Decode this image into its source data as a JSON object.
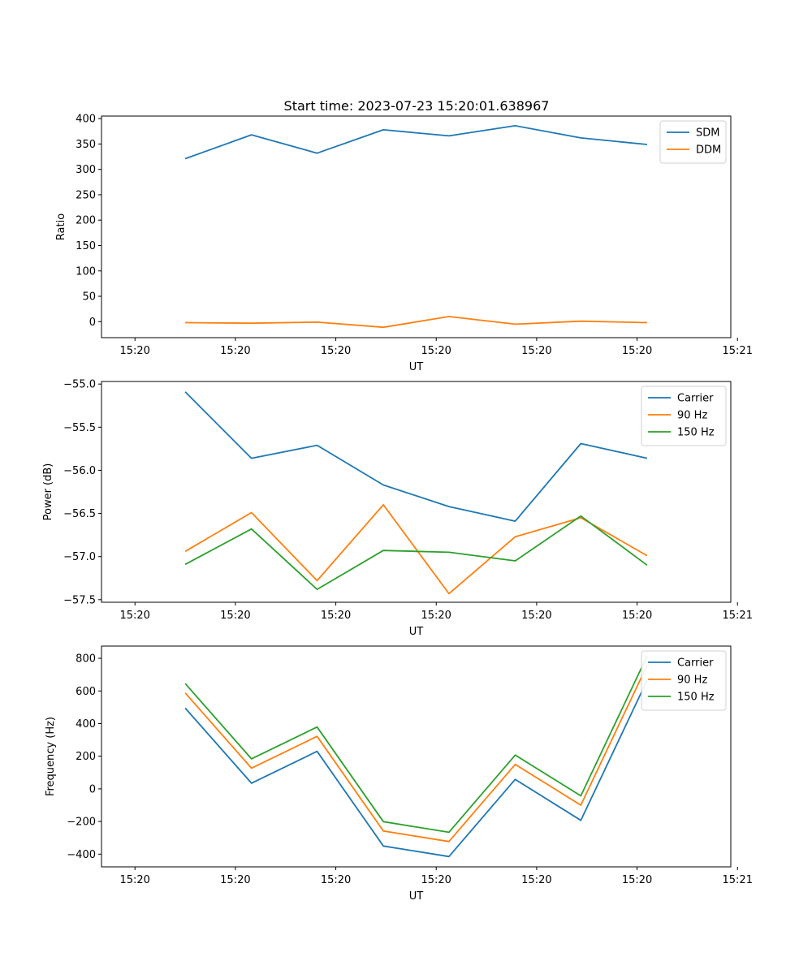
{
  "figure": {
    "title": "Start time: 2023-07-23 15:20:01.638967"
  },
  "chart_data": [
    {
      "type": "line",
      "key": "ratio",
      "title": "Start time: 2023-07-23 15:20:01.638967",
      "xlabel": "UT",
      "ylabel": "Ratio",
      "xlim": [
        -0.5,
        8.9
      ],
      "ylim": [
        -31.5,
        405
      ],
      "x_ticks": [
        0,
        1.5,
        3,
        4.5,
        6,
        7.5,
        9
      ],
      "x_tick_labels": [
        "15:20",
        "15:20",
        "15:20",
        "15:20",
        "15:20",
        "15:20",
        "15:21"
      ],
      "y_ticks": [
        0,
        50,
        100,
        150,
        200,
        250,
        300,
        350,
        400
      ],
      "y_tick_labels": [
        "0",
        "50",
        "100",
        "150",
        "200",
        "250",
        "300",
        "350",
        "400"
      ],
      "legend_position": "top-right",
      "x": [
        0.75,
        1.74,
        2.72,
        3.71,
        4.69,
        5.68,
        6.66,
        7.65
      ],
      "series": [
        {
          "name": "SDM",
          "color": "#1f77b4",
          "values": [
            321,
            368,
            332,
            378,
            366,
            386,
            362,
            349
          ]
        },
        {
          "name": "DDM",
          "color": "#ff7f0e",
          "values": [
            -2,
            -3,
            -1,
            -11,
            10,
            -5,
            1,
            -2
          ]
        }
      ]
    },
    {
      "type": "line",
      "key": "power",
      "title": "",
      "xlabel": "UT",
      "ylabel": "Power (dB)",
      "xlim": [
        -0.5,
        8.9
      ],
      "ylim": [
        -57.53,
        -54.97
      ],
      "x_ticks": [
        0,
        1.5,
        3,
        4.5,
        6,
        7.5,
        9
      ],
      "x_tick_labels": [
        "15:20",
        "15:20",
        "15:20",
        "15:20",
        "15:20",
        "15:20",
        "15:21"
      ],
      "y_ticks": [
        -57.5,
        -57.0,
        -56.5,
        -56.0,
        -55.5,
        -55.0
      ],
      "y_tick_labels": [
        "−57.5",
        "−57.0",
        "−56.5",
        "−56.0",
        "−55.5",
        "−55.0"
      ],
      "legend_position": "top-right",
      "x": [
        0.75,
        1.74,
        2.72,
        3.71,
        4.69,
        5.68,
        6.66,
        7.65
      ],
      "series": [
        {
          "name": "Carrier",
          "color": "#1f77b4",
          "values": [
            -55.09,
            -55.86,
            -55.71,
            -56.17,
            -56.42,
            -56.59,
            -55.69,
            -55.86
          ]
        },
        {
          "name": "90 Hz",
          "color": "#ff7f0e",
          "values": [
            -56.94,
            -56.49,
            -57.28,
            -56.4,
            -57.43,
            -56.77,
            -56.55,
            -56.99
          ]
        },
        {
          "name": "150 Hz",
          "color": "#2ca02c",
          "values": [
            -57.09,
            -56.68,
            -57.38,
            -56.93,
            -56.95,
            -57.05,
            -56.53,
            -57.1
          ]
        }
      ]
    },
    {
      "type": "line",
      "key": "frequency",
      "title": "",
      "xlabel": "UT",
      "ylabel": "Frequency (Hz)",
      "xlim": [
        -0.5,
        8.9
      ],
      "ylim": [
        -478,
        875
      ],
      "x_ticks": [
        0,
        1.5,
        3,
        4.5,
        6,
        7.5,
        9
      ],
      "x_tick_labels": [
        "15:20",
        "15:20",
        "15:20",
        "15:20",
        "15:20",
        "15:20",
        "15:21"
      ],
      "y_ticks": [
        -400,
        -200,
        0,
        200,
        400,
        600,
        800
      ],
      "y_tick_labels": [
        "−400",
        "−200",
        "0",
        "200",
        "400",
        "600",
        "800"
      ],
      "legend_position": "top-right",
      "x": [
        0.75,
        1.74,
        2.72,
        3.71,
        4.69,
        5.68,
        6.66,
        7.65
      ],
      "series": [
        {
          "name": "Carrier",
          "color": "#1f77b4",
          "values": [
            495,
            35,
            230,
            -350,
            -415,
            58,
            -193,
            665
          ]
        },
        {
          "name": "90 Hz",
          "color": "#ff7f0e",
          "values": [
            588,
            127,
            322,
            -258,
            -323,
            150,
            -100,
            757
          ]
        },
        {
          "name": "150 Hz",
          "color": "#2ca02c",
          "values": [
            645,
            184,
            379,
            -201,
            -266,
            207,
            -43,
            814
          ]
        }
      ]
    }
  ]
}
